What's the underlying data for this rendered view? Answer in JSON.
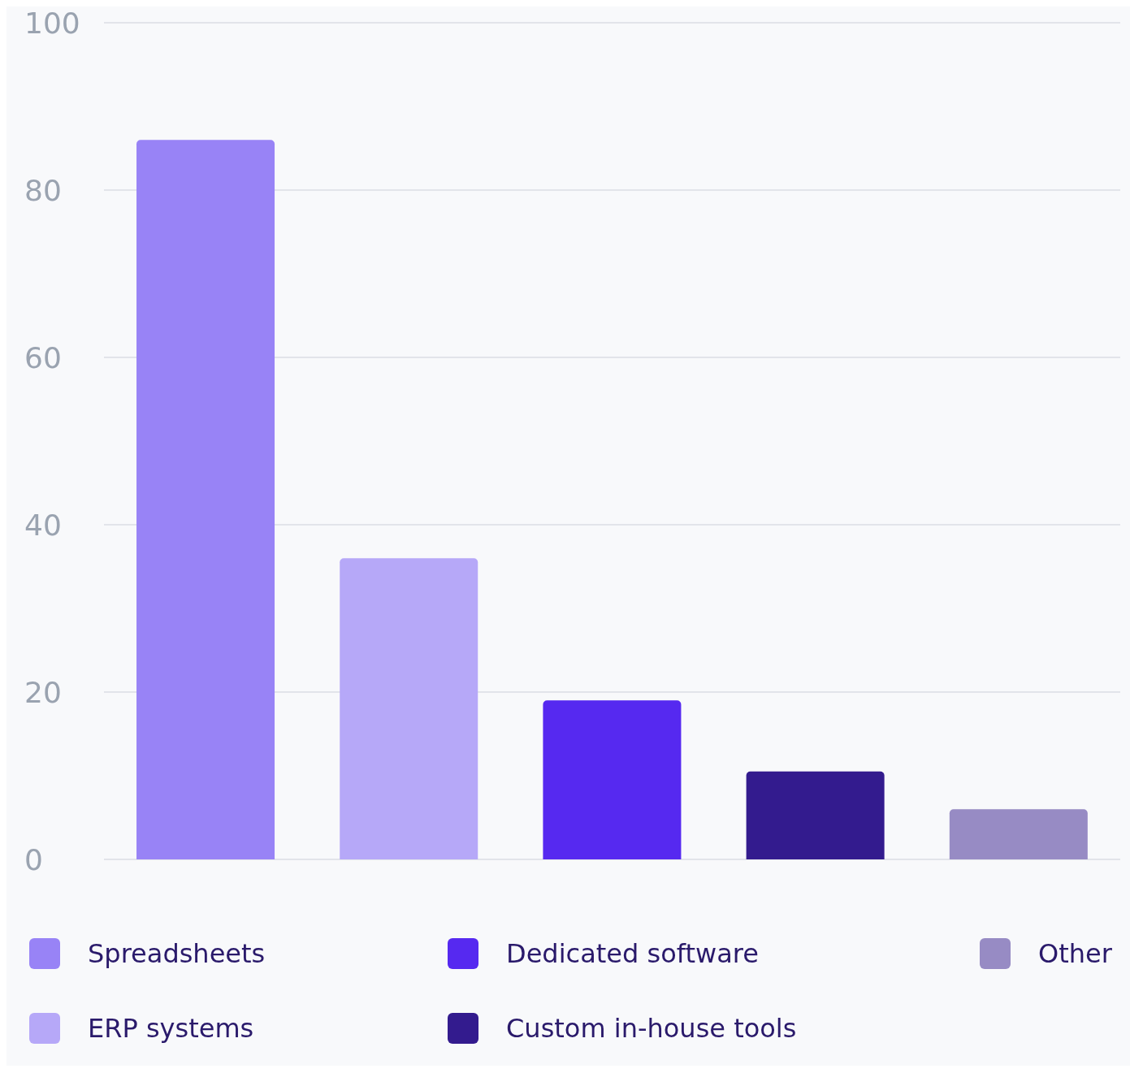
{
  "chart_data": {
    "type": "bar",
    "categories": [
      null,
      null,
      null,
      null,
      null
    ],
    "series": [
      {
        "name": "Spreadsheets",
        "color": "#9883f6",
        "values": [
          86,
          null,
          null,
          null,
          null
        ]
      },
      {
        "name": "ERP systems",
        "color": "#b6a8f8",
        "values": [
          null,
          36,
          null,
          null,
          null
        ]
      },
      {
        "name": "Dedicated software",
        "color": "#5629f0",
        "values": [
          null,
          null,
          19,
          null,
          null
        ]
      },
      {
        "name": "Custom in-house tools",
        "color": "#331b8e",
        "values": [
          null,
          null,
          null,
          10.5,
          null
        ]
      },
      {
        "name": "Other",
        "color": "#978bc4",
        "values": [
          null,
          null,
          null,
          null,
          6
        ]
      }
    ],
    "ylim": [
      0,
      100
    ],
    "yticks": [
      0,
      20,
      40,
      60,
      80,
      100
    ],
    "grid": "y",
    "legend": "bottom",
    "tick_labels": "y"
  }
}
